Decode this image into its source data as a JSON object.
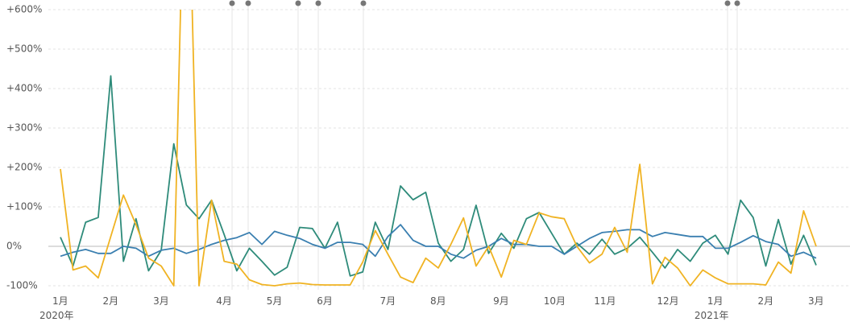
{
  "chart_data": {
    "type": "line",
    "categories": [
      "1月\n2020年",
      null,
      null,
      null,
      "2月",
      null,
      null,
      null,
      "3月",
      null,
      null,
      null,
      null,
      "4月",
      null,
      null,
      null,
      "5月",
      null,
      null,
      null,
      "6月",
      null,
      null,
      null,
      null,
      "7月",
      null,
      null,
      null,
      "8月",
      null,
      null,
      null,
      null,
      "9月",
      null,
      null,
      null,
      "10月",
      null,
      null,
      null,
      "11月",
      null,
      null,
      null,
      null,
      "12月",
      null,
      null,
      null,
      "1月\n2021年",
      null,
      null,
      null,
      "2月",
      null,
      null,
      null,
      "3月"
    ],
    "series": [
      {
        "color": "#2e8b7a",
        "values": [
          23,
          -50,
          61,
          73,
          432,
          -38,
          70,
          -62,
          -10,
          260,
          105,
          70,
          117,
          30,
          -62,
          -5,
          -38,
          -73,
          -53,
          48,
          45,
          -5,
          61,
          -75,
          -65,
          61,
          -8,
          153,
          118,
          137,
          8,
          -38,
          -8,
          104,
          -18,
          33,
          -5,
          70,
          86,
          33,
          -20,
          8,
          -20,
          18,
          -20,
          -5,
          23,
          -15,
          -55,
          -8,
          -38,
          8,
          28,
          -20,
          117,
          73,
          -50,
          68,
          -45,
          28,
          -48
        ]
      },
      {
        "color": "#3a7fb0",
        "values": [
          -25,
          -15,
          -8,
          -18,
          -18,
          0,
          -5,
          -25,
          -10,
          -5,
          -18,
          -8,
          5,
          15,
          22,
          35,
          5,
          38,
          28,
          20,
          5,
          -5,
          10,
          10,
          5,
          -25,
          25,
          55,
          15,
          0,
          0,
          -20,
          -30,
          -10,
          0,
          20,
          5,
          5,
          0,
          0,
          -20,
          0,
          20,
          35,
          38,
          42,
          42,
          25,
          35,
          30,
          25,
          25,
          -5,
          -5,
          10,
          27,
          12,
          5,
          -25,
          -15,
          -30
        ]
      },
      {
        "color": "#f0b323",
        "values": [
          196,
          -60,
          -50,
          -80,
          25,
          130,
          55,
          -30,
          -50,
          -100,
          1200,
          -100,
          117,
          -38,
          -45,
          -85,
          -97,
          -100,
          -95,
          -93,
          -97,
          -98,
          -98,
          -98,
          -40,
          40,
          -20,
          -78,
          -92,
          -30,
          -55,
          5,
          72,
          -50,
          0,
          -78,
          15,
          5,
          85,
          75,
          70,
          0,
          -42,
          -20,
          48,
          -15,
          208,
          -95,
          -28,
          -55,
          -100,
          -60,
          -80,
          -95,
          -95,
          -95,
          -98,
          -40,
          -68,
          90,
          0
        ]
      }
    ],
    "ylim": [
      -100,
      600
    ],
    "yticks": [
      {
        "value": -100,
        "label": "-100%"
      },
      {
        "value": 0,
        "label": "0%"
      },
      {
        "value": 100,
        "label": "+100%"
      },
      {
        "value": 200,
        "label": "+200%"
      },
      {
        "value": 300,
        "label": "+300%"
      },
      {
        "value": 400,
        "label": "+400%"
      },
      {
        "value": 500,
        "label": "+500%"
      },
      {
        "value": 600,
        "label": "+600%"
      }
    ],
    "grid": true
  }
}
